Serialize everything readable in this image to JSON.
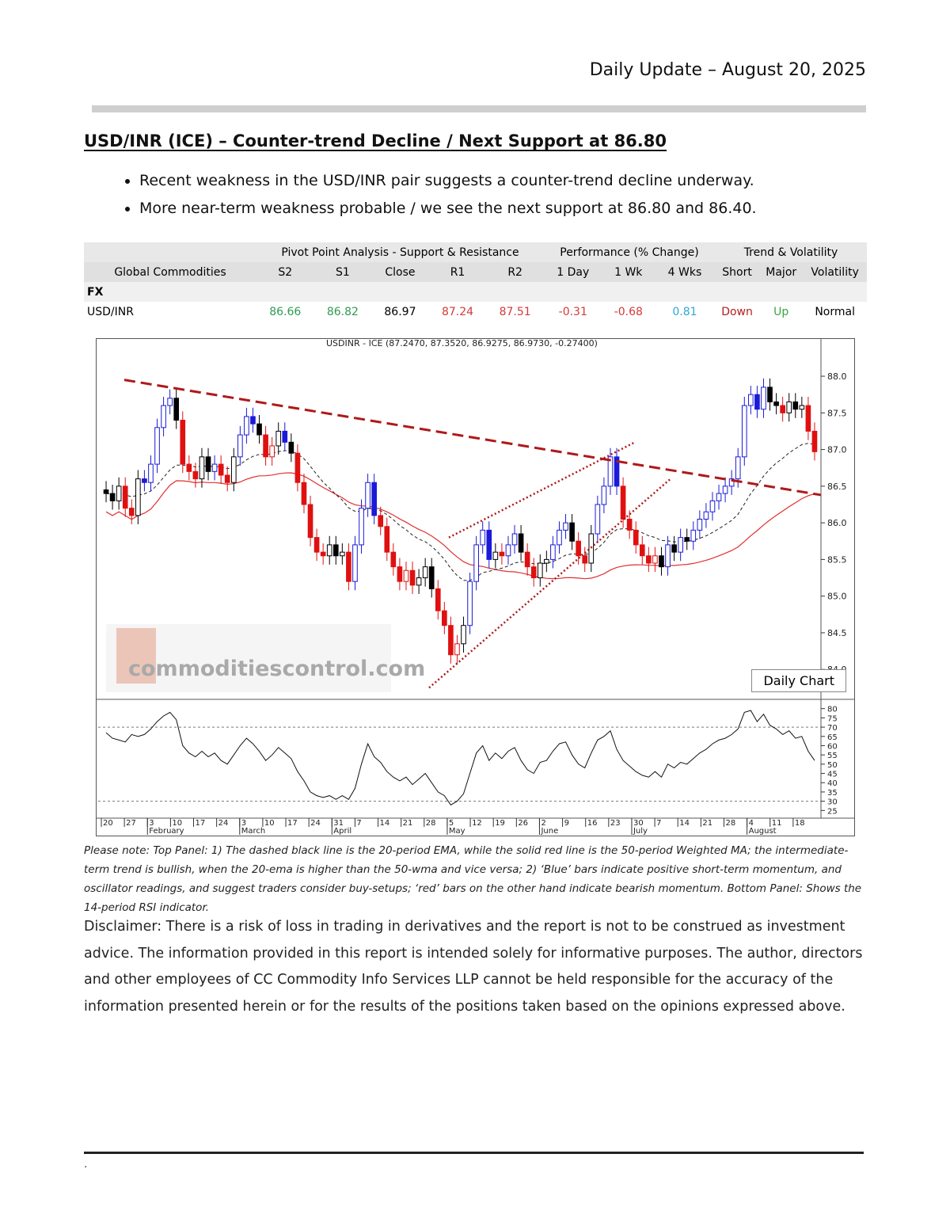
{
  "header": {
    "date": "Daily Update – August 20, 2025"
  },
  "section": {
    "title": "USD/INR (ICE) – Counter-trend Decline / Next Support at 86.80"
  },
  "bullets": [
    "Recent weakness in the USD/INR pair suggests a counter-trend decline underway.",
    "More near-term weakness probable / we see the next support at 86.80 and 86.40."
  ],
  "table": {
    "groups": {
      "pivot": "Pivot Point Analysis - Support & Resistance",
      "performance": "Performance (% Change)",
      "trend": "Trend & Volatility"
    },
    "columns": [
      "Global Commodities",
      "S2",
      "S1",
      "Close",
      "R1",
      "R2",
      "1 Day",
      "1 Wk",
      "4 Wks",
      "Short",
      "Major",
      "Volatility"
    ],
    "section_label": "FX",
    "row": {
      "name": "USD/INR",
      "s2": "86.66",
      "s1": "86.82",
      "close": "86.97",
      "r1": "87.24",
      "r2": "87.51",
      "d1": "-0.31",
      "w1": "-0.68",
      "w4": "0.81",
      "short": "Down",
      "major": "Up",
      "volatility": "Normal"
    }
  },
  "chart": {
    "label": "Daily Chart",
    "watermark": "commoditiescontrol.com",
    "colors": {
      "up": "#1a1ad8",
      "down": "#e01010",
      "neutral": "#000000",
      "wma": "#e03030",
      "trend": "#b01818"
    }
  },
  "chart_data": {
    "type": "candlestick",
    "title": "USDINR - ICE (87.2470, 87.3520, 86.9275, 86.9730, -0.27400)",
    "price_axis": {
      "ticks": [
        "88.0",
        "87.5",
        "87.0",
        "86.5",
        "86.0",
        "85.5",
        "85.0",
        "84.5",
        "84.0"
      ],
      "range": [
        83.7,
        88.4
      ]
    },
    "rsi_axis": {
      "ticks": [
        "80",
        "75",
        "70",
        "65",
        "60",
        "55",
        "50",
        "45",
        "40",
        "35",
        "30",
        "25"
      ],
      "range": [
        23,
        82
      ],
      "levels": [
        70,
        30
      ]
    },
    "date_ticks": [
      "20",
      "27",
      "3",
      "10",
      "17",
      "24",
      "3",
      "10",
      "17",
      "24",
      "31",
      "7",
      "14",
      "21",
      "28",
      "5",
      "12",
      "19",
      "26",
      "2",
      "9",
      "16",
      "23",
      "30",
      "7",
      "14",
      "21",
      "28",
      "4",
      "11",
      "18"
    ],
    "months": [
      "February",
      "March",
      "April",
      "May",
      "June",
      "July",
      "August"
    ],
    "closes": [
      86.4,
      86.3,
      86.5,
      86.2,
      86.1,
      86.6,
      86.55,
      86.8,
      87.3,
      87.6,
      87.7,
      87.4,
      86.8,
      86.7,
      86.6,
      86.9,
      86.7,
      86.8,
      86.65,
      86.55,
      86.9,
      87.2,
      87.45,
      87.35,
      87.2,
      86.9,
      87.05,
      87.25,
      87.1,
      86.95,
      86.55,
      86.25,
      85.8,
      85.6,
      85.55,
      85.7,
      85.55,
      85.6,
      85.2,
      85.7,
      86.2,
      86.55,
      86.1,
      85.95,
      85.6,
      85.4,
      85.2,
      85.35,
      85.15,
      85.25,
      85.4,
      85.1,
      84.8,
      84.6,
      84.2,
      84.35,
      84.6,
      85.2,
      85.7,
      85.9,
      85.5,
      85.6,
      85.55,
      85.7,
      85.85,
      85.6,
      85.4,
      85.25,
      85.45,
      85.5,
      85.7,
      85.9,
      86.0,
      85.75,
      85.55,
      85.45,
      85.85,
      86.25,
      86.5,
      86.9,
      86.5,
      86.05,
      85.9,
      85.7,
      85.55,
      85.45,
      85.55,
      85.4,
      85.7,
      85.6,
      85.8,
      85.75,
      85.9,
      86.05,
      86.15,
      86.3,
      86.4,
      86.5,
      86.6,
      86.9,
      87.6,
      87.75,
      87.55,
      87.85,
      87.65,
      87.6,
      87.5,
      87.65,
      87.55,
      87.6,
      87.25,
      86.97
    ],
    "rsi": [
      67,
      64,
      63,
      62,
      66,
      65,
      66,
      69,
      73,
      76,
      78,
      74,
      60,
      56,
      54,
      57,
      54,
      56,
      52,
      50,
      55,
      60,
      64,
      61,
      57,
      52,
      55,
      59,
      56,
      53,
      46,
      41,
      35,
      33,
      32,
      33,
      31,
      33,
      31,
      37,
      50,
      61,
      54,
      51,
      46,
      43,
      41,
      43,
      39,
      42,
      45,
      40,
      35,
      33,
      28,
      30,
      34,
      45,
      56,
      60,
      52,
      56,
      53,
      57,
      59,
      52,
      47,
      45,
      51,
      52,
      57,
      61,
      62,
      55,
      50,
      48,
      56,
      63,
      65,
      68,
      58,
      52,
      49,
      46,
      44,
      43,
      46,
      43,
      50,
      48,
      51,
      50,
      53,
      56,
      58,
      61,
      63,
      64,
      66,
      69,
      78,
      79,
      73,
      77,
      71,
      69,
      66,
      68,
      64,
      65,
      57,
      52
    ]
  },
  "note": {
    "text": "Please note: Top Panel: 1) The dashed black line is the 20-period EMA, while the solid red line is the 50-period Weighted MA; the intermediate-term trend is bullish, when the 20-ema is higher than the 50-wma and vice versa; 2) ‘Blue’ bars indicate positive short-term momentum, and oscillator readings, and suggest traders consider buy-setups; ‘red’ bars on the other hand indicate bearish momentum. Bottom Panel: Shows the 14-period RSI indicator."
  },
  "disclaimer": {
    "text": "Disclaimer: There is a risk of loss in trading in derivatives and the report is not to be construed as investment advice. The information provided in this report is intended solely for informative purposes. The author, directors and other employees of CC Commodity Info Services LLP cannot be held responsible for the accuracy of the information presented herein or for the results of the positions taken based on the opinions expressed above."
  },
  "footer": {
    "mark": "."
  }
}
